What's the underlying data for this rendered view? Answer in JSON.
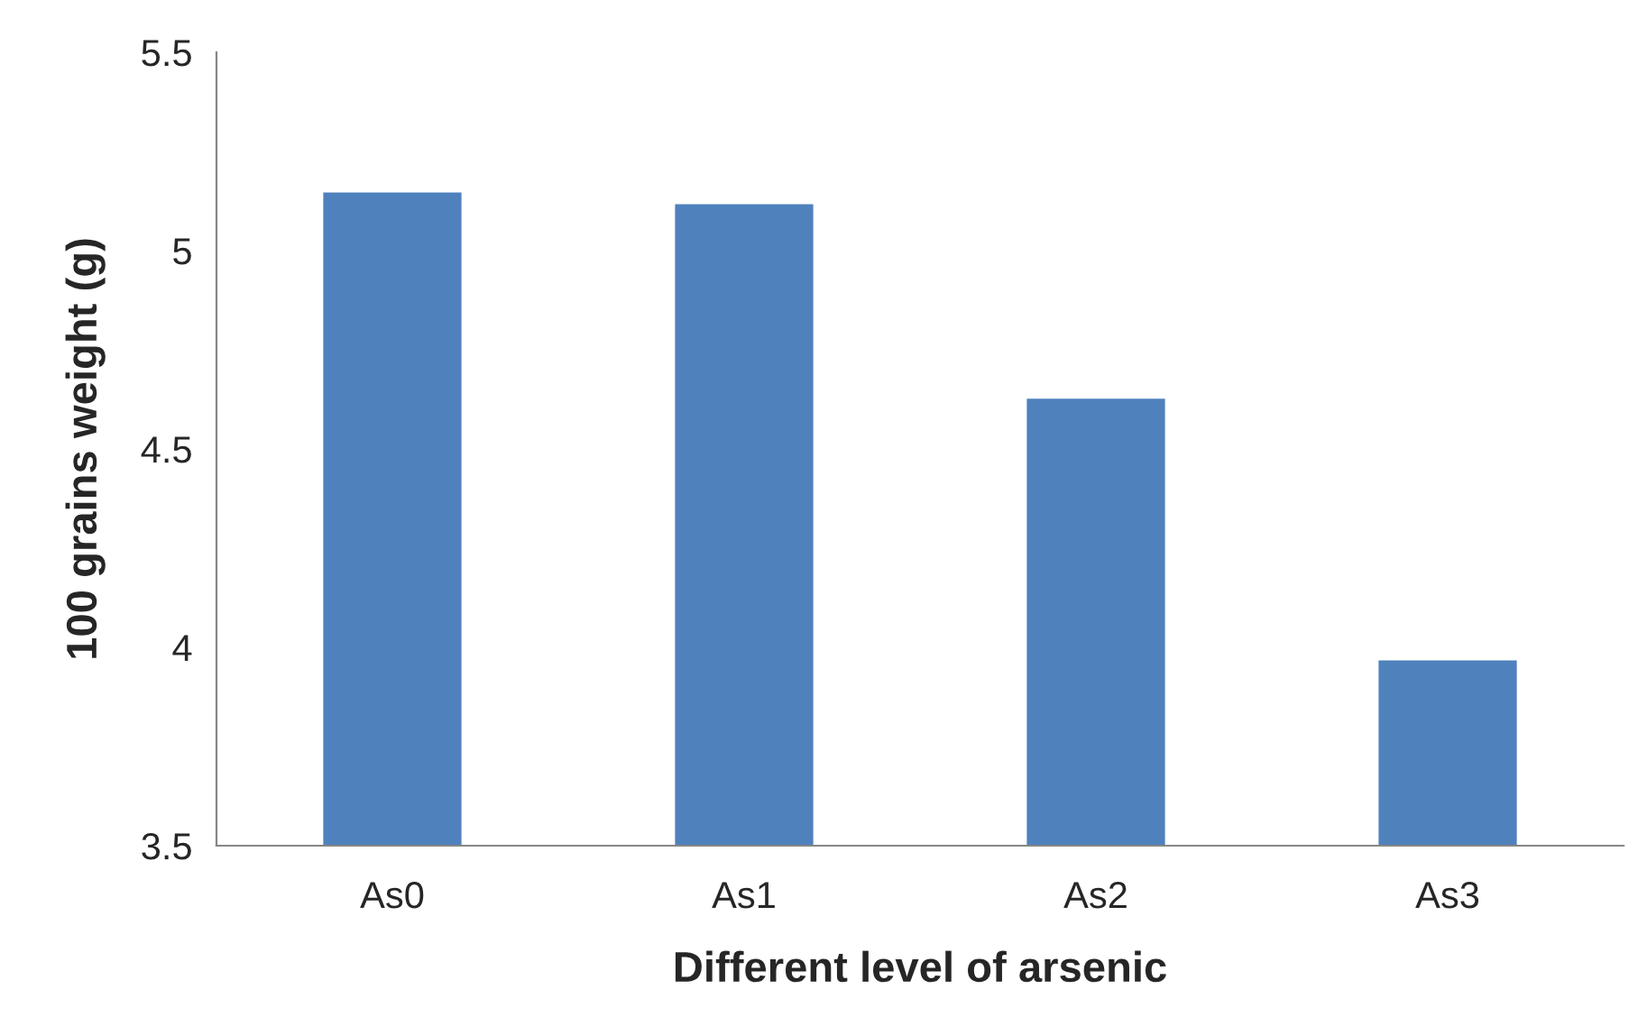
{
  "chart_data": {
    "type": "bar",
    "xlabel": "Different level of arsenic",
    "ylabel": "100 grains weight (g)",
    "categories": [
      "As0",
      "As1",
      "As2",
      "As3"
    ],
    "values": [
      5.15,
      5.12,
      4.63,
      3.97
    ],
    "color": "#4f81bd",
    "ylim": [
      3.5,
      5.5
    ],
    "yticks": [
      3.5,
      4,
      4.5,
      5,
      5.5
    ],
    "grid": false,
    "legend": false
  }
}
